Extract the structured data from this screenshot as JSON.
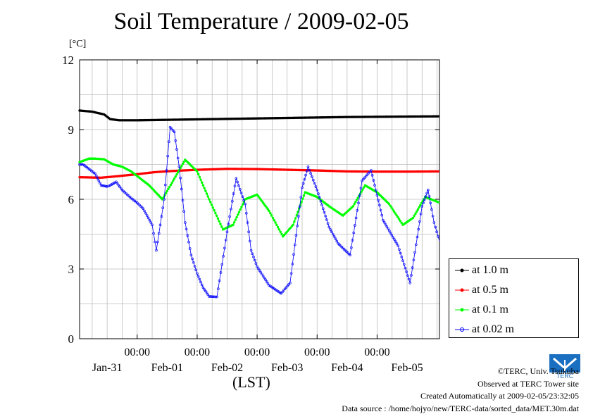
{
  "title": "Soil Temperature / 2009-02-05",
  "unit_label": "[°C]",
  "credits": {
    "copyright": "©TERC, Univ. Tsukuba",
    "observed": "Observed at TERC Tower site",
    "created": "Created Automatically at 2009-02-05/23:32:05",
    "source": "Data source : /home/hojyo/new/TERC-data/sorted_data/MET.30m.dat"
  },
  "logo_text": "TERC",
  "chart_data": {
    "type": "line",
    "title": "Soil Temperature / 2009-02-05",
    "xlabel": "(LST)",
    "ylabel": "[°C]",
    "ylim": [
      0,
      12
    ],
    "yticks": [
      0,
      3,
      6,
      9,
      12
    ],
    "xlim": [
      -0.96,
      5.04
    ],
    "time_ticks": [
      "00:00",
      "00:00",
      "00:00",
      "00:00",
      "00:00"
    ],
    "date_labels": [
      "Jan-31",
      "Feb-01",
      "Feb-02",
      "Feb-03",
      "Feb-04",
      "Feb-05"
    ],
    "grid": true,
    "legend_position": "bottom-right",
    "series": [
      {
        "name": "at 1.0 m",
        "color": "#000000",
        "x": [
          -0.96,
          -0.75,
          -0.55,
          -0.45,
          -0.3,
          0.0,
          0.5,
          1.0,
          1.5,
          2.0,
          2.5,
          3.0,
          3.5,
          4.0,
          4.5,
          5.04
        ],
        "y": [
          9.82,
          9.77,
          9.65,
          9.45,
          9.4,
          9.4,
          9.42,
          9.44,
          9.46,
          9.48,
          9.5,
          9.52,
          9.54,
          9.55,
          9.56,
          9.57
        ]
      },
      {
        "name": "at 0.5 m",
        "color": "#ff0000",
        "x": [
          -0.96,
          -0.6,
          -0.3,
          0.0,
          0.3,
          0.6,
          1.0,
          1.5,
          2.0,
          2.5,
          3.0,
          3.5,
          4.0,
          4.5,
          5.04
        ],
        "y": [
          6.95,
          6.93,
          7.0,
          7.08,
          7.17,
          7.22,
          7.27,
          7.31,
          7.3,
          7.27,
          7.24,
          7.2,
          7.19,
          7.19,
          7.2
        ]
      },
      {
        "name": "at 0.1 m",
        "color": "#00ff00",
        "x": [
          -0.96,
          -0.8,
          -0.7,
          -0.55,
          -0.4,
          -0.25,
          -0.1,
          0.0,
          0.2,
          0.42,
          0.6,
          0.8,
          1.0,
          1.2,
          1.43,
          1.6,
          1.8,
          2.0,
          2.2,
          2.43,
          2.6,
          2.8,
          3.0,
          3.2,
          3.43,
          3.6,
          3.8,
          4.0,
          4.2,
          4.43,
          4.6,
          4.8,
          5.0,
          5.04
        ],
        "y": [
          7.6,
          7.75,
          7.75,
          7.72,
          7.5,
          7.4,
          7.2,
          7.0,
          6.6,
          6.0,
          6.8,
          7.7,
          7.2,
          6.0,
          4.7,
          4.9,
          6.0,
          6.2,
          5.5,
          4.4,
          4.9,
          6.3,
          6.1,
          5.7,
          5.3,
          5.7,
          6.6,
          6.3,
          5.8,
          4.9,
          5.2,
          6.1,
          5.9,
          5.85
        ]
      },
      {
        "name": "at 0.02 m",
        "color": "#0000ff",
        "x": [
          -0.96,
          -0.9,
          -0.8,
          -0.7,
          -0.6,
          -0.5,
          -0.45,
          -0.35,
          -0.25,
          -0.1,
          0.0,
          0.1,
          0.25,
          0.32,
          0.45,
          0.55,
          0.62,
          0.7,
          0.8,
          0.9,
          1.0,
          1.1,
          1.2,
          1.33,
          1.5,
          1.65,
          1.8,
          1.9,
          2.0,
          2.2,
          2.4,
          2.55,
          2.75,
          2.85,
          3.0,
          3.2,
          3.35,
          3.55,
          3.75,
          3.9,
          4.1,
          4.35,
          4.55,
          4.75,
          4.85,
          4.95,
          5.04
        ],
        "y": [
          7.5,
          7.5,
          7.3,
          7.1,
          6.6,
          6.55,
          6.6,
          6.75,
          6.4,
          6.05,
          5.85,
          5.6,
          4.9,
          3.8,
          6.0,
          9.1,
          8.9,
          7.4,
          5.0,
          3.6,
          2.8,
          2.2,
          1.82,
          1.8,
          4.6,
          6.9,
          5.8,
          3.8,
          3.1,
          2.3,
          1.95,
          2.4,
          6.5,
          7.4,
          6.4,
          4.8,
          4.1,
          3.6,
          6.8,
          7.25,
          5.1,
          4.0,
          2.4,
          5.7,
          6.4,
          5.0,
          4.2
        ]
      }
    ]
  }
}
